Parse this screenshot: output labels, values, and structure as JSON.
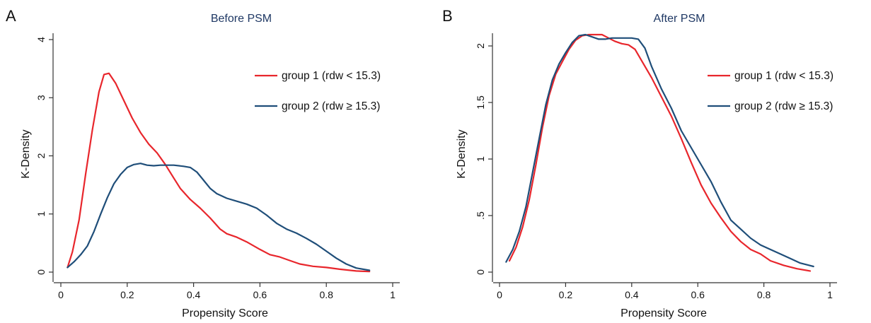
{
  "chart_data": [
    {
      "type": "line",
      "panel": "A",
      "title": "Before PSM",
      "xlabel": "Propensity Score",
      "ylabel": "K-Density",
      "xlim": [
        0,
        1
      ],
      "ylim": [
        0,
        4
      ],
      "xticks": [
        0,
        0.2,
        0.4,
        0.6,
        0.8,
        1
      ],
      "xtick_labels": [
        "0",
        "0.2",
        "0.4",
        "0.6",
        "0.8",
        "1"
      ],
      "yticks": [
        0,
        1,
        2,
        3,
        4
      ],
      "ytick_labels": [
        "0",
        "1",
        "2",
        "3",
        "4"
      ],
      "legend_position": "top-right",
      "grid": false,
      "series": [
        {
          "name": "group 1 (rdw < 15.3)",
          "color": "#e8262c",
          "points": [
            [
              0.02,
              0.08
            ],
            [
              0.035,
              0.35
            ],
            [
              0.055,
              0.9
            ],
            [
              0.075,
              1.7
            ],
            [
              0.095,
              2.45
            ],
            [
              0.115,
              3.1
            ],
            [
              0.13,
              3.4
            ],
            [
              0.145,
              3.42
            ],
            [
              0.165,
              3.25
            ],
            [
              0.19,
              2.95
            ],
            [
              0.215,
              2.65
            ],
            [
              0.24,
              2.4
            ],
            [
              0.265,
              2.2
            ],
            [
              0.29,
              2.05
            ],
            [
              0.315,
              1.85
            ],
            [
              0.34,
              1.62
            ],
            [
              0.36,
              1.44
            ],
            [
              0.39,
              1.25
            ],
            [
              0.42,
              1.1
            ],
            [
              0.45,
              0.93
            ],
            [
              0.48,
              0.74
            ],
            [
              0.5,
              0.66
            ],
            [
              0.53,
              0.6
            ],
            [
              0.56,
              0.52
            ],
            [
              0.6,
              0.39
            ],
            [
              0.63,
              0.3
            ],
            [
              0.66,
              0.26
            ],
            [
              0.69,
              0.2
            ],
            [
              0.72,
              0.14
            ],
            [
              0.76,
              0.1
            ],
            [
              0.8,
              0.08
            ],
            [
              0.84,
              0.05
            ],
            [
              0.89,
              0.02
            ],
            [
              0.93,
              0.01
            ]
          ]
        },
        {
          "name": "group 2 (rdw ≥ 15.3)",
          "color": "#1f4e79",
          "points": [
            [
              0.02,
              0.08
            ],
            [
              0.04,
              0.18
            ],
            [
              0.06,
              0.3
            ],
            [
              0.08,
              0.45
            ],
            [
              0.1,
              0.7
            ],
            [
              0.12,
              1.0
            ],
            [
              0.14,
              1.28
            ],
            [
              0.16,
              1.52
            ],
            [
              0.18,
              1.68
            ],
            [
              0.2,
              1.8
            ],
            [
              0.22,
              1.85
            ],
            [
              0.24,
              1.87
            ],
            [
              0.26,
              1.84
            ],
            [
              0.28,
              1.83
            ],
            [
              0.3,
              1.84
            ],
            [
              0.32,
              1.84
            ],
            [
              0.34,
              1.84
            ],
            [
              0.37,
              1.82
            ],
            [
              0.39,
              1.8
            ],
            [
              0.41,
              1.72
            ],
            [
              0.43,
              1.58
            ],
            [
              0.45,
              1.44
            ],
            [
              0.47,
              1.35
            ],
            [
              0.5,
              1.27
            ],
            [
              0.53,
              1.22
            ],
            [
              0.56,
              1.17
            ],
            [
              0.59,
              1.1
            ],
            [
              0.62,
              0.98
            ],
            [
              0.65,
              0.84
            ],
            [
              0.68,
              0.74
            ],
            [
              0.71,
              0.67
            ],
            [
              0.74,
              0.58
            ],
            [
              0.77,
              0.48
            ],
            [
              0.8,
              0.36
            ],
            [
              0.83,
              0.24
            ],
            [
              0.86,
              0.14
            ],
            [
              0.89,
              0.07
            ],
            [
              0.93,
              0.03
            ]
          ]
        }
      ]
    },
    {
      "type": "line",
      "panel": "B",
      "title": "After PSM",
      "xlabel": "Propensity Score",
      "ylabel": "K-Density",
      "xlim": [
        0,
        1
      ],
      "ylim": [
        0,
        2.1
      ],
      "xticks": [
        0,
        0.2,
        0.4,
        0.6,
        0.8,
        1
      ],
      "xtick_labels": [
        "0",
        "0.2",
        "0.4",
        "0.6",
        "0.8",
        "1"
      ],
      "yticks": [
        0,
        0.5,
        1,
        1.5,
        2
      ],
      "ytick_labels": [
        "0",
        ".5",
        "1",
        "1.5",
        "2"
      ],
      "legend_position": "top-right",
      "grid": false,
      "series": [
        {
          "name": "group 1 (rdw < 15.3)",
          "color": "#e8262c",
          "points": [
            [
              0.03,
              0.1
            ],
            [
              0.05,
              0.22
            ],
            [
              0.07,
              0.4
            ],
            [
              0.09,
              0.64
            ],
            [
              0.11,
              0.95
            ],
            [
              0.13,
              1.28
            ],
            [
              0.15,
              1.56
            ],
            [
              0.17,
              1.75
            ],
            [
              0.19,
              1.86
            ],
            [
              0.21,
              1.97
            ],
            [
              0.23,
              2.05
            ],
            [
              0.25,
              2.09
            ],
            [
              0.27,
              2.1
            ],
            [
              0.29,
              2.1
            ],
            [
              0.31,
              2.1
            ],
            [
              0.33,
              2.07
            ],
            [
              0.35,
              2.04
            ],
            [
              0.37,
              2.02
            ],
            [
              0.39,
              2.01
            ],
            [
              0.41,
              1.97
            ],
            [
              0.43,
              1.87
            ],
            [
              0.46,
              1.72
            ],
            [
              0.49,
              1.55
            ],
            [
              0.52,
              1.38
            ],
            [
              0.55,
              1.18
            ],
            [
              0.58,
              0.97
            ],
            [
              0.61,
              0.77
            ],
            [
              0.64,
              0.61
            ],
            [
              0.67,
              0.48
            ],
            [
              0.7,
              0.36
            ],
            [
              0.73,
              0.27
            ],
            [
              0.76,
              0.2
            ],
            [
              0.79,
              0.16
            ],
            [
              0.82,
              0.1
            ],
            [
              0.86,
              0.06
            ],
            [
              0.9,
              0.03
            ],
            [
              0.94,
              0.01
            ]
          ]
        },
        {
          "name": "group 2 (rdw ≥ 15.3)",
          "color": "#1f4e79",
          "points": [
            [
              0.02,
              0.09
            ],
            [
              0.04,
              0.2
            ],
            [
              0.06,
              0.36
            ],
            [
              0.08,
              0.58
            ],
            [
              0.1,
              0.88
            ],
            [
              0.12,
              1.18
            ],
            [
              0.14,
              1.48
            ],
            [
              0.16,
              1.7
            ],
            [
              0.18,
              1.84
            ],
            [
              0.2,
              1.94
            ],
            [
              0.22,
              2.03
            ],
            [
              0.24,
              2.09
            ],
            [
              0.26,
              2.1
            ],
            [
              0.28,
              2.08
            ],
            [
              0.3,
              2.06
            ],
            [
              0.32,
              2.06
            ],
            [
              0.34,
              2.07
            ],
            [
              0.36,
              2.07
            ],
            [
              0.38,
              2.07
            ],
            [
              0.4,
              2.07
            ],
            [
              0.42,
              2.06
            ],
            [
              0.44,
              1.98
            ],
            [
              0.46,
              1.82
            ],
            [
              0.49,
              1.62
            ],
            [
              0.52,
              1.45
            ],
            [
              0.55,
              1.25
            ],
            [
              0.58,
              1.1
            ],
            [
              0.61,
              0.95
            ],
            [
              0.64,
              0.8
            ],
            [
              0.67,
              0.62
            ],
            [
              0.7,
              0.46
            ],
            [
              0.73,
              0.38
            ],
            [
              0.76,
              0.3
            ],
            [
              0.79,
              0.24
            ],
            [
              0.82,
              0.2
            ],
            [
              0.85,
              0.16
            ],
            [
              0.88,
              0.12
            ],
            [
              0.91,
              0.08
            ],
            [
              0.95,
              0.05
            ]
          ]
        }
      ]
    }
  ]
}
